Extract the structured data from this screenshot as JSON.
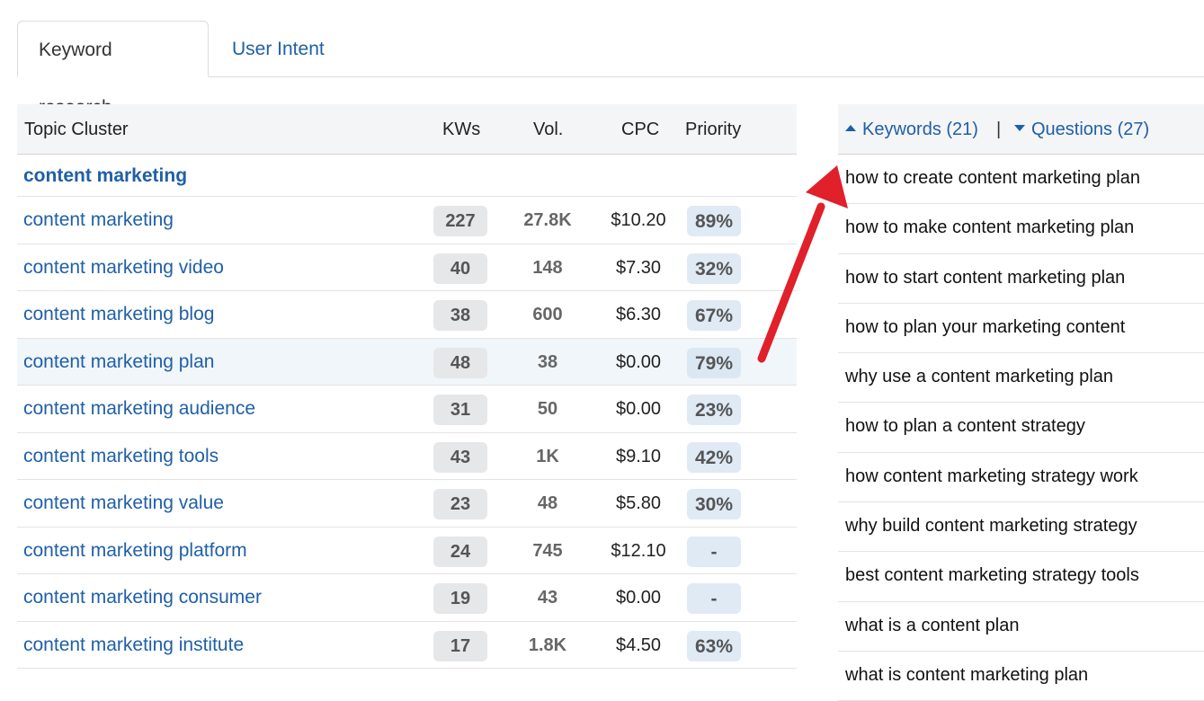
{
  "tabs": [
    {
      "label": "Keyword research",
      "active": true
    },
    {
      "label": "User Intent",
      "active": false
    }
  ],
  "table": {
    "headers": {
      "topic": "Topic Cluster",
      "kws": "KWs",
      "vol": "Vol.",
      "cpc": "CPC",
      "priority": "Priority"
    },
    "group_label": "content marketing",
    "rows": [
      {
        "keyword": "content marketing",
        "kws": "227",
        "vol": "27.8K",
        "cpc": "$10.20",
        "priority": "89%"
      },
      {
        "keyword": "content marketing video",
        "kws": "40",
        "vol": "148",
        "cpc": "$7.30",
        "priority": "32%"
      },
      {
        "keyword": "content marketing blog",
        "kws": "38",
        "vol": "600",
        "cpc": "$6.30",
        "priority": "67%"
      },
      {
        "keyword": "content marketing plan",
        "kws": "48",
        "vol": "38",
        "cpc": "$0.00",
        "priority": "79%"
      },
      {
        "keyword": "content marketing audience",
        "kws": "31",
        "vol": "50",
        "cpc": "$0.00",
        "priority": "23%"
      },
      {
        "keyword": "content marketing tools",
        "kws": "43",
        "vol": "1K",
        "cpc": "$9.10",
        "priority": "42%"
      },
      {
        "keyword": "content marketing value",
        "kws": "23",
        "vol": "48",
        "cpc": "$5.80",
        "priority": "30%"
      },
      {
        "keyword": "content marketing platform",
        "kws": "24",
        "vol": "745",
        "cpc": "$12.10",
        "priority": "-"
      },
      {
        "keyword": "content marketing consumer",
        "kws": "19",
        "vol": "43",
        "cpc": "$0.00",
        "priority": "-"
      },
      {
        "keyword": "content marketing institute",
        "kws": "17",
        "vol": "1.8K",
        "cpc": "$4.50",
        "priority": "63%"
      }
    ]
  },
  "panel": {
    "keywords_label": "Keywords (21)",
    "separator": "|",
    "questions_label": "Questions (27)",
    "questions": [
      "how to create content marketing plan",
      "how to make content marketing plan",
      "how to start content marketing plan",
      "how to plan your marketing content",
      "why use a content marketing plan",
      "how to plan a content strategy",
      "how content marketing strategy work",
      "why build content marketing strategy",
      "best content marketing strategy tools",
      "what is a content plan",
      "what is content marketing plan"
    ]
  },
  "colors": {
    "link": "#1f5fa8",
    "arrow": "#e0202a",
    "header_bg": "#f4f5f6",
    "priority_bg": "#dfeaf5",
    "kws_bg": "#e6e7e9"
  },
  "icons": {
    "keywords_caret": "caret-up-icon",
    "questions_caret": "caret-down-icon",
    "annotation": "red-arrow-icon"
  }
}
